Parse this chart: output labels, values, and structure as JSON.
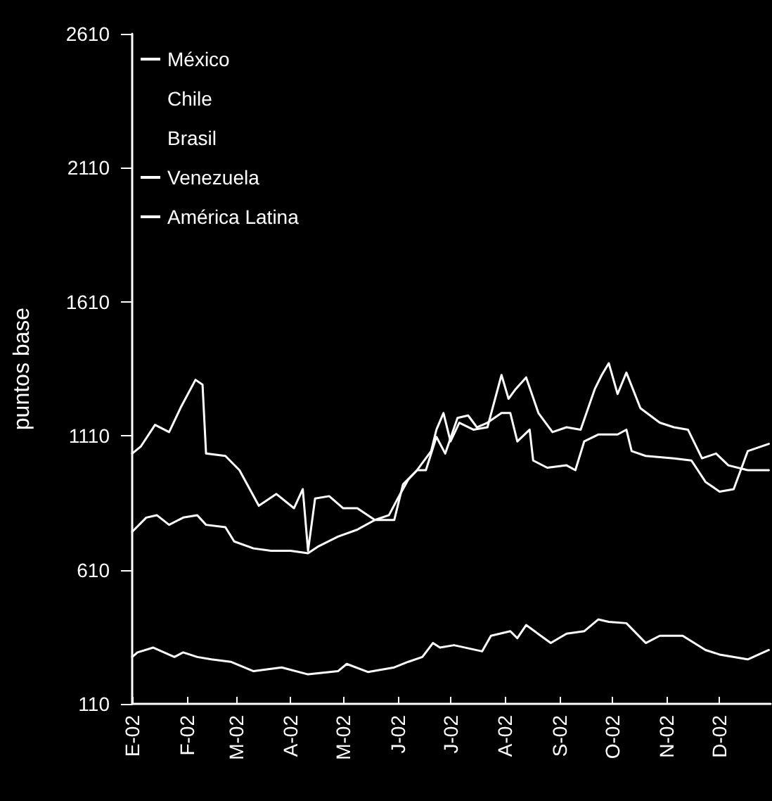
{
  "chart_data": {
    "type": "line",
    "ylabel": "puntos base",
    "ylim": [
      110,
      2610
    ],
    "yticks": [
      110,
      610,
      1110,
      1610,
      2110,
      2610
    ],
    "xlim": [
      "2002-01-01",
      "2002-12-30"
    ],
    "xticks": [
      {
        "value": "2002-01-01",
        "label": "E-02"
      },
      {
        "value": "2002-02-01",
        "label": "F-02"
      },
      {
        "value": "2002-03-01",
        "label": "M-02"
      },
      {
        "value": "2002-04-01",
        "label": "A-02"
      },
      {
        "value": "2002-05-01",
        "label": "M-02"
      },
      {
        "value": "2002-06-01",
        "label": "J-02"
      },
      {
        "value": "2002-07-01",
        "label": "J-02"
      },
      {
        "value": "2002-08-01",
        "label": "A-02"
      },
      {
        "value": "2002-09-01",
        "label": "S-02"
      },
      {
        "value": "2002-10-01",
        "label": "O-02"
      },
      {
        "value": "2002-11-01",
        "label": "N-02"
      },
      {
        "value": "2002-12-01",
        "label": "D-02"
      }
    ],
    "grid": false,
    "legend": "top left",
    "marker": "none",
    "line_style": "solid",
    "series": [
      {
        "name": "México",
        "color": "#ffffff",
        "x": [
          "2002-01-01",
          "2002-01-04",
          "2002-01-13",
          "2002-01-25",
          "2002-01-30",
          "2002-02-07",
          "2002-02-15",
          "2002-02-26",
          "2002-03-11",
          "2002-03-27",
          "2002-04-11",
          "2002-04-28",
          "2002-05-03",
          "2002-05-15",
          "2002-05-30",
          "2002-06-07",
          "2002-06-15",
          "2002-06-21",
          "2002-06-25",
          "2002-07-03",
          "2002-07-19",
          "2002-07-24",
          "2002-08-04",
          "2002-08-08",
          "2002-08-13",
          "2002-08-27",
          "2002-09-05",
          "2002-09-15",
          "2002-09-23",
          "2002-09-29",
          "2002-10-09",
          "2002-10-20",
          "2002-10-28",
          "2002-11-10",
          "2002-11-23",
          "2002-12-01",
          "2002-12-17",
          "2002-12-29"
        ],
        "values": [
          285,
          302,
          320,
          285,
          302,
          285,
          276,
          267,
          232,
          246,
          220,
          232,
          259,
          229,
          246,
          267,
          285,
          337,
          320,
          329,
          306,
          364,
          381,
          355,
          404,
          337,
          372,
          381,
          425,
          416,
          411,
          337,
          364,
          364,
          311,
          294,
          276,
          311
        ]
      },
      {
        "name": "Chile"
      },
      {
        "name": "Brasil"
      },
      {
        "name": "Venezuela",
        "color": "#ffffff",
        "x": [
          "2002-01-01",
          "2002-01-06",
          "2002-01-14",
          "2002-01-22",
          "2002-01-29",
          "2002-02-06",
          "2002-02-10",
          "2002-02-12",
          "2002-02-23",
          "2002-03-03",
          "2002-03-14",
          "2002-03-24",
          "2002-04-03",
          "2002-04-08",
          "2002-04-11",
          "2002-04-15",
          "2002-04-23",
          "2002-05-01",
          "2002-05-09",
          "2002-05-19",
          "2002-05-30",
          "2002-06-04",
          "2002-06-12",
          "2002-06-20",
          "2002-06-23",
          "2002-06-27",
          "2002-07-01",
          "2002-07-06",
          "2002-07-14",
          "2002-07-22",
          "2002-07-30",
          "2002-08-03",
          "2002-08-07",
          "2002-08-13",
          "2002-08-20",
          "2002-08-28",
          "2002-09-05",
          "2002-09-13",
          "2002-09-21",
          "2002-09-25",
          "2002-09-29",
          "2002-10-04",
          "2002-10-09",
          "2002-10-17",
          "2002-10-28",
          "2002-11-05",
          "2002-11-13",
          "2002-11-21",
          "2002-11-29",
          "2002-12-06",
          "2002-12-17",
          "2002-12-29"
        ],
        "values": [
          1044,
          1071,
          1151,
          1124,
          1221,
          1319,
          1301,
          1044,
          1035,
          982,
          849,
          893,
          840,
          911,
          681,
          876,
          885,
          840,
          840,
          796,
          796,
          929,
          982,
          1053,
          1133,
          1195,
          1089,
          1159,
          1133,
          1142,
          1337,
          1248,
          1284,
          1328,
          1195,
          1124,
          1142,
          1133,
          1284,
          1337,
          1381,
          1266,
          1346,
          1213,
          1159,
          1142,
          1133,
          1026,
          1044,
          1000,
          982,
          982
        ]
      },
      {
        "name": "América Latina",
        "color": "#ffffff",
        "x": [
          "2002-01-01",
          "2002-01-09",
          "2002-01-15",
          "2002-01-22",
          "2002-01-30",
          "2002-02-07",
          "2002-02-12",
          "2002-02-23",
          "2002-02-28",
          "2002-03-11",
          "2002-03-21",
          "2002-04-01",
          "2002-04-11",
          "2002-04-17",
          "2002-04-28",
          "2002-05-09",
          "2002-05-19",
          "2002-05-27",
          "2002-06-01",
          "2002-06-07",
          "2002-06-12",
          "2002-06-17",
          "2002-06-23",
          "2002-06-28",
          "2002-07-05",
          "2002-07-11",
          "2002-07-16",
          "2002-07-22",
          "2002-07-30",
          "2002-08-04",
          "2002-08-08",
          "2002-08-15",
          "2002-08-17",
          "2002-08-25",
          "2002-09-05",
          "2002-09-10",
          "2002-09-15",
          "2002-09-23",
          "2002-10-04",
          "2002-10-09",
          "2002-10-12",
          "2002-10-20",
          "2002-11-05",
          "2002-11-15",
          "2002-11-23",
          "2002-12-01",
          "2002-12-09",
          "2002-12-17",
          "2002-12-29"
        ],
        "values": [
          752,
          805,
          814,
          778,
          805,
          814,
          778,
          769,
          716,
          690,
          681,
          681,
          672,
          698,
          734,
          760,
          796,
          814,
          876,
          947,
          982,
          982,
          1106,
          1044,
          1177,
          1186,
          1142,
          1159,
          1195,
          1195,
          1089,
          1133,
          1018,
          991,
          1000,
          982,
          1089,
          1115,
          1115,
          1133,
          1053,
          1035,
          1026,
          1018,
          938,
          902,
          911,
          1053,
          1080
        ]
      }
    ]
  }
}
